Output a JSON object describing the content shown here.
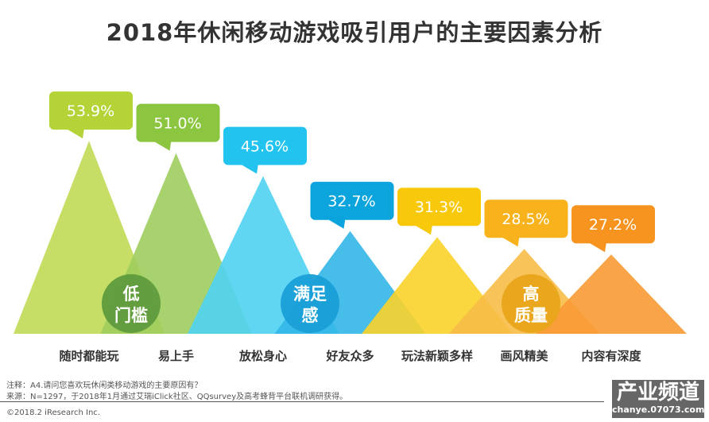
{
  "chart_data": {
    "type": "bar",
    "title": "2018年休闲移动游戏吸引用户的主要因素分析",
    "categories": [
      "随时都能玩",
      "易上手",
      "放松身心",
      "好友众多",
      "玩法新颖多样",
      "画风精美",
      "内容有深度"
    ],
    "values": [
      53.9,
      51.0,
      45.6,
      32.7,
      31.3,
      28.5,
      27.2
    ],
    "data_labels": [
      "53.9%",
      "51.0%",
      "45.6%",
      "32.7%",
      "31.3%",
      "28.5%",
      "27.2%"
    ],
    "colors": [
      "#c0da55",
      "#9fcd5e",
      "#4fd1f2",
      "#33b6e8",
      "#fbd32a",
      "#f7bd47",
      "#f89a34"
    ],
    "callout_colors": [
      "#b3d336",
      "#8cc53f",
      "#22c3ee",
      "#0ba4dd",
      "#f8c80b",
      "#f7b21c",
      "#f7931f"
    ],
    "groups": [
      {
        "label_line1": "低",
        "label_line2": "门槛",
        "color": "#5f9b3d"
      },
      {
        "label_line1": "满足",
        "label_line2": "感",
        "color": "#199fd7"
      },
      {
        "label_line1": "高",
        "label_line2": "质量",
        "color": "#e9a51a"
      }
    ],
    "grid": false
  },
  "notes": {
    "note": "注释：A4.请问您喜欢玩休闲类移动游戏的主要原因有？",
    "source": "来源：N=1297，于2018年1月通过艾瑞iClick社区、QQsurvey及高考蜂背平台联机调研获得。",
    "copyright": "©2018.2 iResearch Inc."
  },
  "watermark": {
    "text": "产业频道",
    "sub": "chanye.07073.com"
  }
}
